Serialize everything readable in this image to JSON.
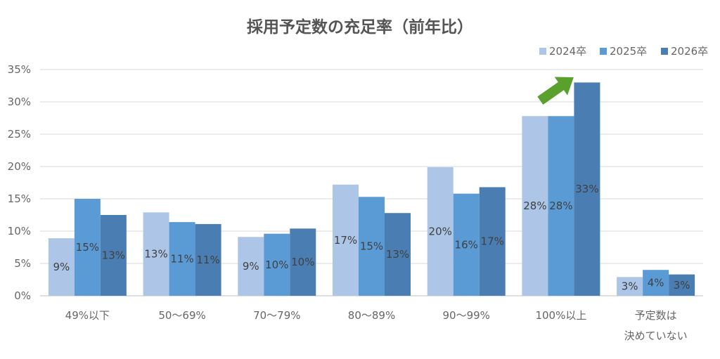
{
  "chart_data": {
    "type": "bar",
    "title": "採用予定数の充足率（前年比）",
    "categories": [
      [
        "49%以下"
      ],
      [
        "50～69%"
      ],
      [
        "70～79%"
      ],
      [
        "80～89%"
      ],
      [
        "90～99%"
      ],
      [
        "100%以上"
      ],
      [
        "予定数は",
        "決めていない"
      ]
    ],
    "series": [
      {
        "name": "2024卒",
        "color": "#adc5e6",
        "values": [
          8.9,
          12.9,
          9.1,
          17.2,
          19.9,
          27.8,
          2.9
        ],
        "labels": [
          "9%",
          "13%",
          "9%",
          "17%",
          "20%",
          "28%",
          "3%"
        ]
      },
      {
        "name": "2025卒",
        "color": "#5b9bd5",
        "values": [
          15.0,
          11.4,
          9.6,
          15.3,
          15.8,
          27.8,
          4.0
        ],
        "labels": [
          "15%",
          "11%",
          "10%",
          "15%",
          "16%",
          "28%",
          "4%"
        ]
      },
      {
        "name": "2026卒",
        "color": "#4a7eb3",
        "values": [
          12.5,
          11.1,
          10.4,
          12.8,
          16.8,
          33.0,
          3.3
        ],
        "labels": [
          "13%",
          "11%",
          "10%",
          "13%",
          "17%",
          "33%",
          "3%"
        ]
      }
    ],
    "ylim": [
      0,
      35
    ],
    "yticks": [
      0,
      5,
      10,
      15,
      20,
      25,
      30,
      35
    ],
    "ytick_labels": [
      "0%",
      "5%",
      "10%",
      "15%",
      "20%",
      "25%",
      "30%",
      "35%"
    ],
    "grid": true,
    "legend_position": "top-right",
    "annotation": {
      "type": "arrow",
      "target_category": 5,
      "color": "#5aa02c"
    }
  }
}
